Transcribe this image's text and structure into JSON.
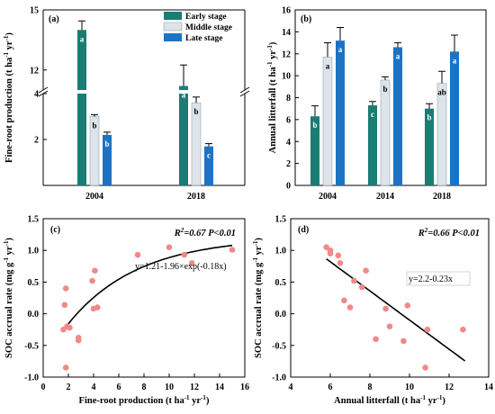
{
  "colors": {
    "early": "#1b7c74",
    "middle": "#dde4ea",
    "late": "#1c73c4",
    "point": "#f08a88",
    "fit": "#000000"
  },
  "chart_data": [
    {
      "panel": "(a)",
      "type": "bar",
      "ylabel": "Fine-root production (t ha⁻¹ yr⁻¹)",
      "categories": [
        "2004",
        "2018"
      ],
      "ylim": [
        0,
        15
      ],
      "axis_break": [
        4,
        11
      ],
      "yticks": [
        "2",
        "4",
        "12",
        "15"
      ],
      "legend": [
        "Early stage",
        "Middle stage",
        "Late stage"
      ],
      "legend_position": "top-right",
      "series": [
        {
          "name": "Early stage",
          "values": [
            14.0,
            11.2
          ],
          "errors": [
            0.45,
            1.05
          ],
          "labels": [
            "a",
            "a"
          ]
        },
        {
          "name": "Middle stage",
          "values": [
            3.0,
            3.6
          ],
          "errors": [
            0.08,
            0.25
          ],
          "labels": [
            "b",
            "b"
          ]
        },
        {
          "name": "Late stage",
          "values": [
            2.2,
            1.7
          ],
          "errors": [
            0.12,
            0.12
          ],
          "labels": [
            "b",
            "c"
          ]
        }
      ]
    },
    {
      "panel": "(b)",
      "type": "bar",
      "ylabel": "Annual litterfall (t ha⁻¹ yr⁻¹)",
      "categories": [
        "2004",
        "2014",
        "2018"
      ],
      "ylim": [
        0,
        16
      ],
      "yticks": [
        "0",
        "2",
        "4",
        "6",
        "8",
        "10",
        "12",
        "14",
        "16"
      ],
      "series": [
        {
          "name": "Early stage",
          "values": [
            6.3,
            7.3,
            7.0
          ],
          "errors": [
            0.95,
            0.35,
            0.45
          ],
          "labels": [
            "b",
            "c",
            "b"
          ]
        },
        {
          "name": "Middle stage",
          "values": [
            11.7,
            9.6,
            9.3
          ],
          "errors": [
            1.3,
            0.3,
            1.1
          ],
          "labels": [
            "a",
            "b",
            "ab"
          ]
        },
        {
          "name": "Late stage",
          "values": [
            13.2,
            12.6,
            12.2
          ],
          "errors": [
            1.2,
            0.4,
            1.5
          ],
          "labels": [
            "a",
            "a",
            "a"
          ]
        }
      ]
    },
    {
      "panel": "(c)",
      "type": "scatter",
      "xlabel": "Fine-root production (t ha⁻¹ yr⁻¹)",
      "ylabel": "SOC accrual rate (mg g⁻¹ yr⁻¹)",
      "xlim": [
        0,
        16
      ],
      "ylim": [
        -1.0,
        1.5
      ],
      "xticks": [
        "0",
        "2",
        "4",
        "6",
        "8",
        "10",
        "12",
        "14",
        "16"
      ],
      "yticks": [
        "-1.0",
        "-0.5",
        "0.0",
        "0.5",
        "1.0",
        "1.5"
      ],
      "stat": "R²=0.67 P<0.01",
      "equation": "y=1.21-1.96×exp(-0.18x)",
      "fit": {
        "model": "exp",
        "a": 1.21,
        "b": 1.96,
        "c": 0.18,
        "x_range": [
          1.5,
          15
        ]
      },
      "points": [
        [
          1.8,
          0.4
        ],
        [
          1.7,
          0.14
        ],
        [
          1.6,
          -0.25
        ],
        [
          1.9,
          -0.2
        ],
        [
          2.1,
          -0.22
        ],
        [
          1.8,
          -0.85
        ],
        [
          2.8,
          -0.38
        ],
        [
          2.8,
          -0.42
        ],
        [
          3.9,
          0.52
        ],
        [
          4.1,
          0.68
        ],
        [
          4.0,
          0.08
        ],
        [
          4.3,
          0.1
        ],
        [
          7.5,
          0.93
        ],
        [
          10.0,
          1.05
        ],
        [
          11.2,
          0.93
        ],
        [
          11.8,
          0.8
        ],
        [
          15.0,
          1.01
        ]
      ]
    },
    {
      "panel": "(d)",
      "type": "scatter",
      "xlabel": "Annual litterfall (t ha⁻¹ yr⁻¹)",
      "ylabel": "SOC accrual rate (mg g⁻¹ yr⁻¹)",
      "xlim": [
        4,
        14
      ],
      "ylim": [
        -1.0,
        1.5
      ],
      "xticks": [
        "4",
        "6",
        "8",
        "10",
        "12",
        "14"
      ],
      "yticks": [
        "-1.0",
        "-0.5",
        "0.0",
        "0.5",
        "1.0",
        "1.5"
      ],
      "stat": "R²=0.66 P<0.01",
      "equation": "y=2.2-0.23x",
      "fit": {
        "model": "linear",
        "intercept": 2.2,
        "slope": -0.23,
        "x_range": [
          5.8,
          12.8
        ]
      },
      "points": [
        [
          5.8,
          1.05
        ],
        [
          6.0,
          0.95
        ],
        [
          6.0,
          1.0
        ],
        [
          6.4,
          0.92
        ],
        [
          6.5,
          0.8
        ],
        [
          6.7,
          0.21
        ],
        [
          7.0,
          0.1
        ],
        [
          7.2,
          0.52
        ],
        [
          7.6,
          0.42
        ],
        [
          7.8,
          0.68
        ],
        [
          8.3,
          -0.4
        ],
        [
          8.8,
          0.08
        ],
        [
          9.0,
          -0.2
        ],
        [
          9.7,
          -0.43
        ],
        [
          9.9,
          0.13
        ],
        [
          10.8,
          -0.85
        ],
        [
          10.9,
          -0.25
        ],
        [
          12.7,
          -0.25
        ]
      ]
    }
  ]
}
